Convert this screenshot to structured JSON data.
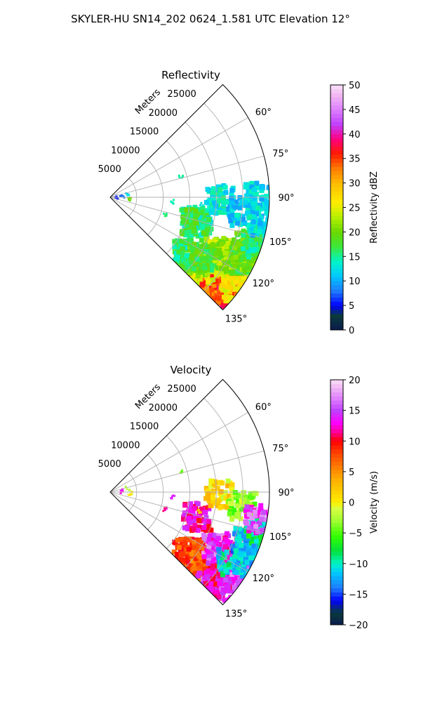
{
  "figure_title": "SKYLER-HU  SN14_202  0624_1.581 UTC Elevation 12°",
  "chart_data": [
    {
      "type": "heatmap",
      "projection": "polar-sector",
      "title": "Reflectivity",
      "radial_label": "Meters",
      "radial_ticks": [
        5000,
        10000,
        15000,
        20000,
        25000
      ],
      "radial_tick_labels": [
        "5000",
        "10000",
        "15000",
        "20000",
        "25000"
      ],
      "r_range": [
        0,
        30000
      ],
      "theta_range_deg": [
        45,
        135
      ],
      "angle_ticks_deg": [
        60,
        75,
        90,
        105,
        120,
        135
      ],
      "angle_tick_labels": [
        "60°",
        "75°",
        "90°",
        "105°",
        "120°",
        "135°"
      ],
      "grid": true,
      "colorbar": {
        "label": "Reflectivity dBZ",
        "range": [
          0,
          50
        ],
        "ticks": [
          0,
          5,
          10,
          15,
          20,
          25,
          30,
          35,
          40,
          45,
          50
        ],
        "tick_labels": [
          "0",
          "5",
          "10",
          "15",
          "20",
          "25",
          "30",
          "35",
          "40",
          "45",
          "50"
        ],
        "stops": [
          {
            "v": 0,
            "color": "#0b1a4e"
          },
          {
            "v": 3,
            "color": "#0a3b3b"
          },
          {
            "v": 5,
            "color": "#0000ff"
          },
          {
            "v": 8,
            "color": "#1f7cff"
          },
          {
            "v": 11,
            "color": "#00c8ff"
          },
          {
            "v": 14,
            "color": "#00f5c8"
          },
          {
            "v": 17,
            "color": "#3ce83c"
          },
          {
            "v": 20,
            "color": "#6ad800"
          },
          {
            "v": 23,
            "color": "#b4f000"
          },
          {
            "v": 26,
            "color": "#ffee00"
          },
          {
            "v": 30,
            "color": "#ffbb00"
          },
          {
            "v": 33,
            "color": "#ff7a00"
          },
          {
            "v": 36,
            "color": "#ff1a00"
          },
          {
            "v": 39,
            "color": "#ff0080"
          },
          {
            "v": 42,
            "color": "#c040ff"
          },
          {
            "v": 45,
            "color": "#dd80ff"
          },
          {
            "v": 48,
            "color": "#f2b8f2"
          },
          {
            "v": 50,
            "color": "#fae0fa"
          }
        ]
      },
      "echoes": [
        {
          "r": 26500,
          "theta": 123,
          "value": 32
        },
        {
          "r": 25000,
          "theta": 124,
          "value": 30
        },
        {
          "r": 24500,
          "theta": 128,
          "value": 34
        },
        {
          "r": 27500,
          "theta": 129,
          "value": 35
        },
        {
          "r": 26500,
          "theta": 133,
          "value": 36
        },
        {
          "r": 24000,
          "theta": 133,
          "value": 34
        },
        {
          "r": 28000,
          "theta": 122,
          "value": 26
        },
        {
          "r": 29000,
          "theta": 126,
          "value": 26
        },
        {
          "r": 23000,
          "theta": 121,
          "value": 22
        },
        {
          "r": 22500,
          "theta": 117,
          "value": 23
        },
        {
          "r": 22000,
          "theta": 128,
          "value": 25
        },
        {
          "r": 20000,
          "theta": 128,
          "value": 22
        },
        {
          "r": 18500,
          "theta": 128,
          "value": 20
        },
        {
          "r": 18000,
          "theta": 126,
          "value": 16
        },
        {
          "r": 21000,
          "theta": 123,
          "value": 18
        },
        {
          "r": 25000,
          "theta": 116,
          "value": 21
        },
        {
          "r": 26500,
          "theta": 115,
          "value": 21
        },
        {
          "r": 28000,
          "theta": 115,
          "value": 19
        },
        {
          "r": 29000,
          "theta": 112,
          "value": 20
        },
        {
          "r": 27000,
          "theta": 110,
          "value": 19
        },
        {
          "r": 29500,
          "theta": 107,
          "value": 17
        },
        {
          "r": 28500,
          "theta": 105,
          "value": 15
        },
        {
          "r": 29500,
          "theta": 99,
          "value": 12
        },
        {
          "r": 17000,
          "theta": 106,
          "value": 14
        },
        {
          "r": 16500,
          "theta": 105,
          "value": 17
        },
        {
          "r": 17500,
          "theta": 103,
          "value": 13
        },
        {
          "r": 14000,
          "theta": 75,
          "value": 15
        },
        {
          "r": 17500,
          "theta": 95,
          "value": 13
        },
        {
          "r": 20500,
          "theta": 91,
          "value": 13
        },
        {
          "r": 25000,
          "theta": 96,
          "value": 12
        },
        {
          "r": 28000,
          "theta": 89,
          "value": 12
        },
        {
          "r": 12000,
          "theta": 95,
          "value": 14
        },
        {
          "r": 11000,
          "theta": 108,
          "value": 16
        },
        {
          "r": 4000,
          "theta": 96,
          "value": 20
        },
        {
          "r": 2500,
          "theta": 90,
          "value": 8
        },
        {
          "r": 1500,
          "theta": 95,
          "value": 6
        },
        {
          "r": 3500,
          "theta": 83,
          "value": 12
        }
      ]
    },
    {
      "type": "heatmap",
      "projection": "polar-sector",
      "title": "Velocity",
      "radial_label": "Meters",
      "radial_ticks": [
        5000,
        10000,
        15000,
        20000,
        25000
      ],
      "radial_tick_labels": [
        "5000",
        "10000",
        "15000",
        "20000",
        "25000"
      ],
      "r_range": [
        0,
        30000
      ],
      "theta_range_deg": [
        45,
        135
      ],
      "angle_ticks_deg": [
        60,
        75,
        90,
        105,
        120,
        135
      ],
      "angle_tick_labels": [
        "60°",
        "75°",
        "90°",
        "105°",
        "120°",
        "135°"
      ],
      "grid": true,
      "colorbar": {
        "label": "Velocity (m/s)",
        "range": [
          -20,
          20
        ],
        "ticks": [
          -20,
          -15,
          -10,
          -5,
          0,
          5,
          10,
          15,
          20
        ],
        "tick_labels": [
          "−20",
          "−15",
          "−10",
          "−5",
          "0",
          "5",
          "10",
          "15",
          "20"
        ],
        "stops": [
          {
            "v": -20,
            "color": "#0b1a4e"
          },
          {
            "v": -18,
            "color": "#0a3b3b"
          },
          {
            "v": -16,
            "color": "#0000ff"
          },
          {
            "v": -14,
            "color": "#1f7cff"
          },
          {
            "v": -11.5,
            "color": "#00c8ff"
          },
          {
            "v": -10,
            "color": "#00f5c8"
          },
          {
            "v": -8,
            "color": "#00e040"
          },
          {
            "v": -5.5,
            "color": "#33ff00"
          },
          {
            "v": -3,
            "color": "#a0ff30"
          },
          {
            "v": -1,
            "color": "#d8ff40"
          },
          {
            "v": 0,
            "color": "#ffee00"
          },
          {
            "v": 2,
            "color": "#ffcc00"
          },
          {
            "v": 4,
            "color": "#ffaa00"
          },
          {
            "v": 6,
            "color": "#ff7700"
          },
          {
            "v": 8,
            "color": "#ff4400"
          },
          {
            "v": 10,
            "color": "#ff0000"
          },
          {
            "v": 11.5,
            "color": "#ff0099"
          },
          {
            "v": 13,
            "color": "#ff00ff"
          },
          {
            "v": 15,
            "color": "#c040ff"
          },
          {
            "v": 17,
            "color": "#e080ff"
          },
          {
            "v": 19,
            "color": "#f2c0f2"
          },
          {
            "v": 20,
            "color": "#fae0fa"
          }
        ]
      },
      "echoes": [
        {
          "r": 21000,
          "theta": 123,
          "value": 8
        },
        {
          "r": 19500,
          "theta": 126,
          "value": 8
        },
        {
          "r": 18500,
          "theta": 128,
          "value": 8
        },
        {
          "r": 22500,
          "theta": 128,
          "value": 7
        },
        {
          "r": 24000,
          "theta": 132,
          "value": 8
        },
        {
          "r": 26000,
          "theta": 133,
          "value": 14
        },
        {
          "r": 27500,
          "theta": 130,
          "value": 13
        },
        {
          "r": 25000,
          "theta": 126,
          "value": 12
        },
        {
          "r": 24500,
          "theta": 119,
          "value": 14
        },
        {
          "r": 22500,
          "theta": 117,
          "value": 15
        },
        {
          "r": 26500,
          "theta": 115,
          "value": 13
        },
        {
          "r": 28500,
          "theta": 124,
          "value": 15
        },
        {
          "r": 28500,
          "theta": 112,
          "value": -11
        },
        {
          "r": 29500,
          "theta": 107,
          "value": -11
        },
        {
          "r": 27500,
          "theta": 110,
          "value": -12
        },
        {
          "r": 29000,
          "theta": 104,
          "value": -9
        },
        {
          "r": 26500,
          "theta": 120,
          "value": -11
        },
        {
          "r": 28500,
          "theta": 116,
          "value": -12
        },
        {
          "r": 17000,
          "theta": 106,
          "value": 12
        },
        {
          "r": 17500,
          "theta": 103,
          "value": 3
        },
        {
          "r": 14000,
          "theta": 75,
          "value": -4
        },
        {
          "r": 20500,
          "theta": 91,
          "value": 1
        },
        {
          "r": 25000,
          "theta": 96,
          "value": -3
        },
        {
          "r": 28500,
          "theta": 100,
          "value": 15
        },
        {
          "r": 12000,
          "theta": 95,
          "value": 14
        },
        {
          "r": 11000,
          "theta": 108,
          "value": 12
        },
        {
          "r": 4000,
          "theta": 96,
          "value": 0
        },
        {
          "r": 2500,
          "theta": 90,
          "value": 13
        },
        {
          "r": 3500,
          "theta": 83,
          "value": -2
        }
      ]
    }
  ]
}
